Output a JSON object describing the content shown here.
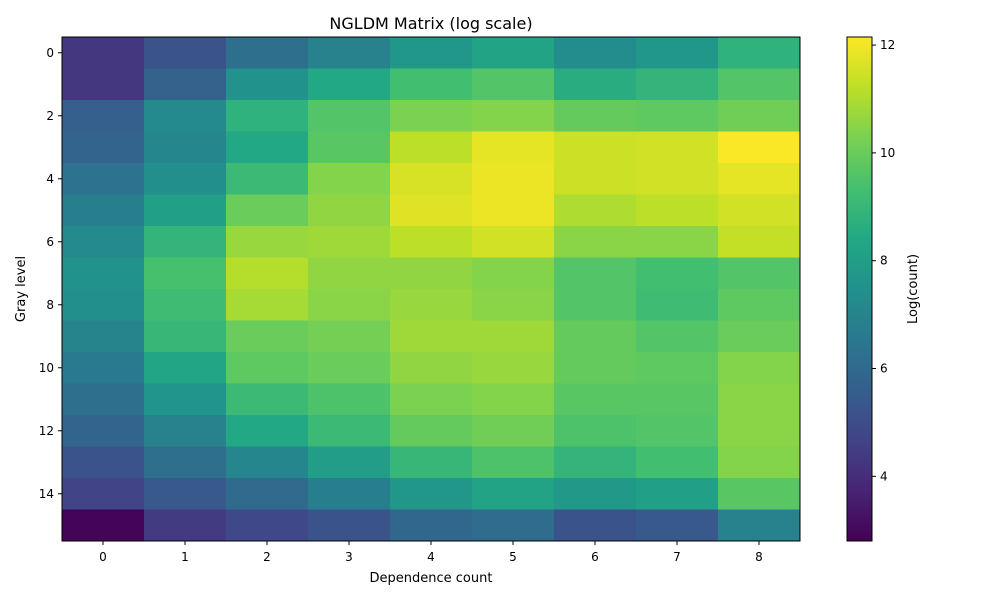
{
  "chart_data": {
    "type": "heatmap",
    "title": "NGLDM Matrix (log scale)",
    "xlabel": "Dependence count",
    "ylabel": "Gray level",
    "x_categories": [
      0,
      1,
      2,
      3,
      4,
      5,
      6,
      7,
      8
    ],
    "y_categories": [
      0,
      1,
      2,
      3,
      4,
      5,
      6,
      7,
      8,
      9,
      10,
      11,
      12,
      13,
      14,
      15
    ],
    "x_tick_labels": [
      "0",
      "1",
      "2",
      "3",
      "4",
      "5",
      "6",
      "7",
      "8"
    ],
    "y_tick_labels": [
      "0",
      "2",
      "4",
      "6",
      "8",
      "10",
      "12",
      "14"
    ],
    "y_tick_values": [
      0,
      2,
      4,
      6,
      8,
      10,
      12,
      14
    ],
    "colormap": "viridis",
    "colorbar": {
      "label": "Log(count)",
      "vmin": 2.8,
      "vmax": 12.15,
      "ticks": [
        4,
        6,
        8,
        10,
        12
      ],
      "tick_labels": [
        "4",
        "6",
        "8",
        "10",
        "12"
      ]
    },
    "values": [
      [
        4.3,
        5.2,
        6.2,
        6.9,
        7.7,
        8.2,
        7.3,
        7.7,
        8.8
      ],
      [
        4.3,
        5.7,
        7.5,
        8.4,
        9.3,
        9.6,
        8.6,
        8.9,
        9.6
      ],
      [
        5.6,
        7.2,
        8.8,
        9.6,
        10.3,
        10.4,
        9.9,
        9.8,
        10.1
      ],
      [
        5.8,
        7.1,
        8.4,
        9.7,
        11.2,
        11.8,
        11.4,
        11.5,
        12.1
      ],
      [
        6.3,
        7.4,
        9.1,
        10.4,
        11.6,
        11.9,
        11.4,
        11.5,
        11.8
      ],
      [
        6.8,
        8.1,
        10.0,
        10.6,
        11.7,
        11.9,
        11.0,
        11.2,
        11.5
      ],
      [
        7.2,
        8.9,
        10.7,
        10.8,
        11.2,
        11.5,
        10.5,
        10.5,
        11.3
      ],
      [
        7.5,
        9.4,
        11.1,
        10.6,
        10.6,
        10.4,
        9.6,
        9.3,
        9.6
      ],
      [
        7.4,
        9.2,
        10.9,
        10.5,
        10.7,
        10.5,
        9.6,
        9.2,
        9.8
      ],
      [
        7.0,
        9.0,
        10.0,
        10.2,
        10.8,
        10.8,
        9.9,
        9.6,
        10.0
      ],
      [
        6.6,
        8.3,
        9.8,
        10.0,
        10.6,
        10.7,
        9.9,
        9.8,
        10.4
      ],
      [
        6.2,
        7.6,
        9.1,
        9.5,
        10.3,
        10.4,
        9.7,
        9.7,
        10.5
      ],
      [
        5.8,
        6.9,
        8.4,
        9.1,
        9.9,
        10.1,
        9.5,
        9.6,
        10.5
      ],
      [
        5.2,
        6.2,
        7.1,
        8.0,
        9.0,
        9.5,
        8.9,
        9.3,
        10.4
      ],
      [
        4.7,
        5.4,
        6.0,
        6.8,
        7.7,
        8.2,
        7.8,
        8.1,
        9.7
      ],
      [
        2.9,
        4.4,
        4.8,
        5.2,
        5.9,
        6.1,
        5.2,
        5.4,
        6.9
      ]
    ]
  }
}
